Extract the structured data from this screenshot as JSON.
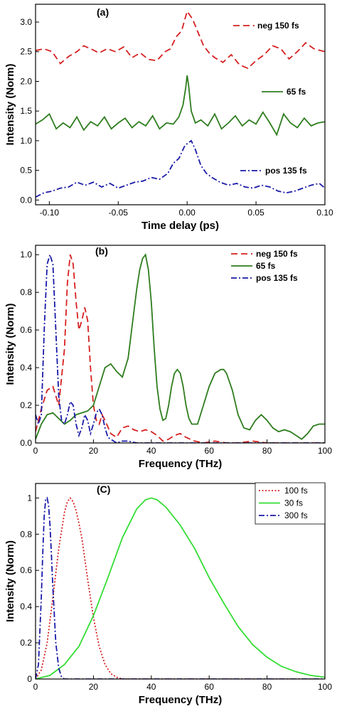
{
  "chart_data": [
    {
      "type": "line",
      "panel_label": "(a)",
      "xlabel": "Time delay (ps)",
      "ylabel": "Intensity (Norm)",
      "xlim": [
        -0.11,
        0.1
      ],
      "ylim": [
        -0.08,
        3.3
      ],
      "xticks": [
        -0.1,
        -0.05,
        0.0,
        0.05,
        0.1
      ],
      "xtick_labels": [
        "-0.10",
        "-0.05",
        "0.00",
        "0.05",
        "0.10"
      ],
      "yticks": [
        0.0,
        0.5,
        1.0,
        1.5,
        2.0,
        2.5,
        3.0
      ],
      "ytick_labels": [
        "0.0",
        "0.5",
        "1.0",
        "1.5",
        "2.0",
        "2.5",
        "3.0"
      ],
      "legend_placement": "inline-right",
      "series": [
        {
          "name": "neg 150 fs",
          "color": "#d62020",
          "dash": "dash",
          "x": [
            -0.11,
            -0.104,
            -0.098,
            -0.092,
            -0.086,
            -0.08,
            -0.075,
            -0.07,
            -0.064,
            -0.058,
            -0.052,
            -0.046,
            -0.04,
            -0.034,
            -0.028,
            -0.022,
            -0.016,
            -0.012,
            -0.008,
            -0.004,
            0.0,
            0.004,
            0.008,
            0.012,
            0.016,
            0.02,
            0.026,
            0.032,
            0.038,
            0.044,
            0.05,
            0.056,
            0.062,
            0.068,
            0.074,
            0.08,
            0.086,
            0.092,
            0.1
          ],
          "y": [
            2.52,
            2.55,
            2.5,
            2.3,
            2.42,
            2.5,
            2.6,
            2.55,
            2.48,
            2.55,
            2.5,
            2.58,
            2.4,
            2.48,
            2.37,
            2.35,
            2.5,
            2.55,
            2.75,
            2.85,
            3.18,
            3.05,
            2.82,
            2.6,
            2.48,
            2.4,
            2.32,
            2.45,
            2.28,
            2.22,
            2.35,
            2.45,
            2.6,
            2.55,
            2.38,
            2.5,
            2.65,
            2.55,
            2.5
          ]
        },
        {
          "name": "65 fs",
          "color": "#2e7d1e",
          "dash": "solid",
          "x": [
            -0.11,
            -0.105,
            -0.1,
            -0.095,
            -0.09,
            -0.085,
            -0.08,
            -0.075,
            -0.07,
            -0.065,
            -0.06,
            -0.055,
            -0.05,
            -0.045,
            -0.04,
            -0.035,
            -0.03,
            -0.025,
            -0.02,
            -0.015,
            -0.01,
            -0.006,
            -0.003,
            -0.001,
            0.0,
            0.001,
            0.003,
            0.006,
            0.01,
            0.015,
            0.02,
            0.025,
            0.03,
            0.035,
            0.04,
            0.045,
            0.05,
            0.055,
            0.06,
            0.065,
            0.07,
            0.075,
            0.08,
            0.085,
            0.09,
            0.095,
            0.1
          ],
          "y": [
            1.28,
            1.35,
            1.45,
            1.2,
            1.3,
            1.22,
            1.4,
            1.18,
            1.32,
            1.25,
            1.4,
            1.2,
            1.3,
            1.38,
            1.22,
            1.32,
            1.25,
            1.42,
            1.2,
            1.3,
            1.28,
            1.4,
            1.6,
            1.9,
            2.1,
            1.95,
            1.5,
            1.3,
            1.35,
            1.25,
            1.45,
            1.2,
            1.3,
            1.42,
            1.25,
            1.35,
            1.28,
            1.48,
            1.3,
            1.1,
            1.45,
            1.3,
            1.22,
            1.38,
            1.25,
            1.3,
            1.32
          ]
        },
        {
          "name": "pos 135 fs",
          "color": "#1a1aa8",
          "dash": "dashdot",
          "x": [
            -0.11,
            -0.104,
            -0.098,
            -0.092,
            -0.086,
            -0.08,
            -0.074,
            -0.068,
            -0.062,
            -0.056,
            -0.05,
            -0.044,
            -0.038,
            -0.032,
            -0.026,
            -0.02,
            -0.014,
            -0.01,
            -0.006,
            -0.002,
            0.0,
            0.003,
            0.006,
            0.01,
            0.014,
            0.018,
            0.024,
            0.03,
            0.036,
            0.042,
            0.048,
            0.054,
            0.06,
            0.066,
            0.072,
            0.078,
            0.084,
            0.09,
            0.096,
            0.1
          ],
          "y": [
            0.05,
            0.12,
            0.15,
            0.2,
            0.22,
            0.3,
            0.25,
            0.3,
            0.22,
            0.28,
            0.2,
            0.25,
            0.3,
            0.32,
            0.38,
            0.35,
            0.45,
            0.62,
            0.7,
            0.9,
            0.95,
            1.0,
            0.85,
            0.58,
            0.45,
            0.38,
            0.3,
            0.25,
            0.28,
            0.22,
            0.2,
            0.25,
            0.22,
            0.15,
            0.12,
            0.15,
            0.2,
            0.25,
            0.28,
            0.2
          ]
        }
      ]
    },
    {
      "type": "line",
      "panel_label": "(b)",
      "xlabel": "Frequency (THz)",
      "ylabel": "Intensity (Norm)",
      "xlim": [
        0,
        100
      ],
      "ylim": [
        0,
        1.05
      ],
      "xticks": [
        0,
        20,
        40,
        60,
        80,
        100
      ],
      "xtick_labels": [
        "0",
        "20",
        "40",
        "60",
        "80",
        "100"
      ],
      "yticks": [
        0.0,
        0.2,
        0.4,
        0.6,
        0.8,
        1.0
      ],
      "ytick_labels": [
        "0.0",
        "0.2",
        "0.4",
        "0.6",
        "0.8",
        "1.0"
      ],
      "legend_placement": "top-right",
      "series": [
        {
          "name": "neg 150 fs",
          "color": "#d62020",
          "dash": "dash",
          "x": [
            0,
            2,
            4,
            6,
            8,
            10,
            11,
            12,
            13,
            14,
            15,
            16,
            17,
            18,
            19,
            20,
            21,
            22,
            23,
            24,
            26,
            28,
            30,
            32,
            34,
            36,
            38,
            40,
            42,
            44,
            46,
            48,
            50,
            52,
            55,
            58,
            62,
            66,
            70,
            75,
            80,
            85,
            90,
            95,
            100
          ],
          "y": [
            0.06,
            0.18,
            0.28,
            0.3,
            0.2,
            0.5,
            0.85,
            1.0,
            0.95,
            0.75,
            0.6,
            0.65,
            0.72,
            0.65,
            0.4,
            0.2,
            0.12,
            0.1,
            0.15,
            0.12,
            0.05,
            0.03,
            0.08,
            0.09,
            0.07,
            0.06,
            0.07,
            0.06,
            0.04,
            0.01,
            0.02,
            0.04,
            0.05,
            0.03,
            0.01,
            0.0,
            0.01,
            0.0,
            0.0,
            0.01,
            0.0,
            0.0,
            0.0,
            0.0,
            0.0
          ]
        },
        {
          "name": "65 fs",
          "color": "#2e7d1e",
          "dash": "solid",
          "x": [
            0,
            2,
            4,
            6,
            8,
            10,
            12,
            14,
            16,
            18,
            20,
            22,
            24,
            26,
            28,
            30,
            32,
            34,
            35,
            36,
            37,
            38,
            39,
            40,
            41,
            42,
            43,
            44,
            45,
            46,
            47,
            48,
            49,
            50,
            51,
            52,
            53,
            54,
            56,
            58,
            60,
            62,
            64,
            65,
            66,
            68,
            70,
            72,
            74,
            76,
            78,
            80,
            82,
            84,
            86,
            88,
            90,
            92,
            94,
            96,
            98,
            100
          ],
          "y": [
            0.02,
            0.1,
            0.15,
            0.16,
            0.13,
            0.1,
            0.12,
            0.15,
            0.16,
            0.17,
            0.2,
            0.3,
            0.4,
            0.42,
            0.38,
            0.35,
            0.45,
            0.7,
            0.82,
            0.92,
            0.98,
            1.0,
            0.92,
            0.75,
            0.5,
            0.3,
            0.18,
            0.12,
            0.13,
            0.2,
            0.3,
            0.37,
            0.39,
            0.37,
            0.3,
            0.2,
            0.13,
            0.1,
            0.1,
            0.2,
            0.3,
            0.37,
            0.39,
            0.39,
            0.37,
            0.28,
            0.15,
            0.08,
            0.07,
            0.12,
            0.15,
            0.12,
            0.08,
            0.06,
            0.07,
            0.06,
            0.04,
            0.02,
            0.05,
            0.09,
            0.1,
            0.1
          ]
        },
        {
          "name": "pos 135 fs",
          "color": "#1a1aa8",
          "dash": "dashdot",
          "x": [
            0,
            1,
            2,
            3,
            4,
            5,
            6,
            7,
            8,
            9,
            10,
            11,
            12,
            13,
            14,
            15,
            16,
            17,
            18,
            19,
            20,
            21,
            22,
            23,
            24,
            25,
            26,
            27,
            28,
            30,
            32,
            35,
            40,
            45,
            50,
            60,
            70,
            80,
            90,
            100
          ],
          "y": [
            0.15,
            0.1,
            0.15,
            0.6,
            0.95,
            1.0,
            0.95,
            0.6,
            0.25,
            0.12,
            0.1,
            0.15,
            0.22,
            0.2,
            0.1,
            0.04,
            0.08,
            0.15,
            0.12,
            0.05,
            0.1,
            0.16,
            0.18,
            0.15,
            0.08,
            0.03,
            0.02,
            0.01,
            0.0,
            0.01,
            0.01,
            0.0,
            0.0,
            0.0,
            0.0,
            0.0,
            0.0,
            0.0,
            0.0,
            0.0
          ]
        }
      ]
    },
    {
      "type": "line",
      "panel_label": "(C)",
      "xlabel": "Frequency (THz)",
      "ylabel": "Intensity (Norm)",
      "xlim": [
        0,
        100
      ],
      "ylim": [
        0,
        1.08
      ],
      "xticks": [
        0,
        20,
        40,
        60,
        80,
        100
      ],
      "xtick_labels": [
        "0",
        "20",
        "40",
        "60",
        "80",
        "100"
      ],
      "yticks": [
        0,
        0.2,
        0.4,
        0.6,
        0.8,
        1.0
      ],
      "ytick_labels": [
        "0",
        "0.2",
        "0.4",
        "0.6",
        "0.8",
        "1"
      ],
      "legend_placement": "top-right",
      "series": [
        {
          "name": "100 fs",
          "color": "#d62020",
          "dash": "dot",
          "x": [
            0,
            2,
            4,
            6,
            8,
            10,
            11,
            12,
            13,
            14,
            15,
            16,
            18,
            20,
            22,
            24,
            26,
            28,
            30,
            34,
            40,
            50,
            60,
            80,
            100
          ],
          "y": [
            0.0,
            0.05,
            0.2,
            0.45,
            0.72,
            0.92,
            0.98,
            1.0,
            0.98,
            0.93,
            0.86,
            0.78,
            0.55,
            0.34,
            0.18,
            0.08,
            0.03,
            0.01,
            0.0,
            0.0,
            0.0,
            0.0,
            0.0,
            0.0,
            0.0
          ]
        },
        {
          "name": "30 fs",
          "color": "#33dd33",
          "dash": "solid",
          "x": [
            0,
            5,
            10,
            15,
            20,
            25,
            30,
            35,
            38,
            40,
            42,
            45,
            50,
            55,
            60,
            65,
            70,
            75,
            80,
            85,
            90,
            95,
            100
          ],
          "y": [
            0.0,
            0.02,
            0.08,
            0.18,
            0.35,
            0.56,
            0.78,
            0.94,
            0.99,
            1.0,
            0.99,
            0.95,
            0.85,
            0.72,
            0.56,
            0.42,
            0.29,
            0.19,
            0.12,
            0.07,
            0.04,
            0.02,
            0.01
          ]
        },
        {
          "name": "300 fs",
          "color": "#1a1aa8",
          "dash": "dashdot",
          "x": [
            0,
            1,
            2,
            2.5,
            3,
            3.5,
            4,
            4.5,
            5,
            5.5,
            6,
            7,
            8,
            9,
            10,
            12,
            15,
            20,
            40,
            60,
            80,
            100
          ],
          "y": [
            0.0,
            0.08,
            0.45,
            0.7,
            0.9,
            0.99,
            1.0,
            0.96,
            0.85,
            0.68,
            0.5,
            0.2,
            0.06,
            0.01,
            0.0,
            0.0,
            0.0,
            0.0,
            0.0,
            0.0,
            0.0,
            0.0
          ]
        }
      ]
    }
  ]
}
